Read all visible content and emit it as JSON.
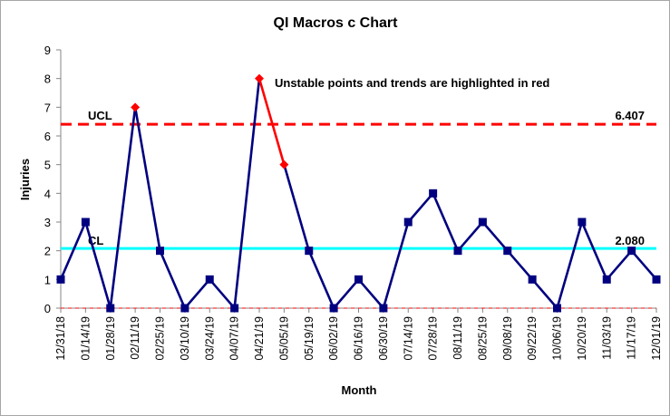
{
  "chart_data": {
    "type": "line",
    "title": "QI Macros c Chart",
    "xlabel": "Month",
    "ylabel": "Injuries",
    "ylim": [
      0,
      9
    ],
    "yticks": [
      "0",
      "1",
      "2",
      "3",
      "4",
      "5",
      "6",
      "7",
      "8",
      "9"
    ],
    "grid": false,
    "categories": [
      "12/31/18",
      "01/14/19",
      "01/28/19",
      "02/11/19",
      "02/25/19",
      "03/10/19",
      "03/24/19",
      "04/07/19",
      "04/21/19",
      "05/05/19",
      "05/19/19",
      "06/02/19",
      "06/16/19",
      "06/30/19",
      "07/14/19",
      "07/28/19",
      "08/11/19",
      "08/25/19",
      "09/08/19",
      "09/22/19",
      "10/06/19",
      "10/20/19",
      "11/03/19",
      "11/17/19",
      "12/01/19"
    ],
    "series": [
      {
        "values": [
          1,
          3,
          0,
          7,
          2,
          0,
          1,
          0,
          8,
          5,
          2,
          0,
          1,
          0,
          3,
          4,
          2,
          3,
          2,
          1,
          0,
          3,
          1,
          2,
          1
        ],
        "color": "#000080",
        "marker": "square"
      }
    ],
    "highlighted_indices": [
      3,
      8,
      9
    ],
    "highlight_color": "#ff0000",
    "control_lines": {
      "ucl": {
        "label": "UCL",
        "value": 6.407,
        "value_label": "6.407",
        "color": "#ff0000",
        "style": "dashed"
      },
      "cl": {
        "label": "CL",
        "value": 2.08,
        "value_label": "2.080",
        "color": "#00ffff",
        "style": "solid"
      },
      "lcl": {
        "value": 0,
        "color": "#ff0000",
        "style": "dashed"
      }
    },
    "annotation": "Unstable points and trends are highlighted in red"
  }
}
